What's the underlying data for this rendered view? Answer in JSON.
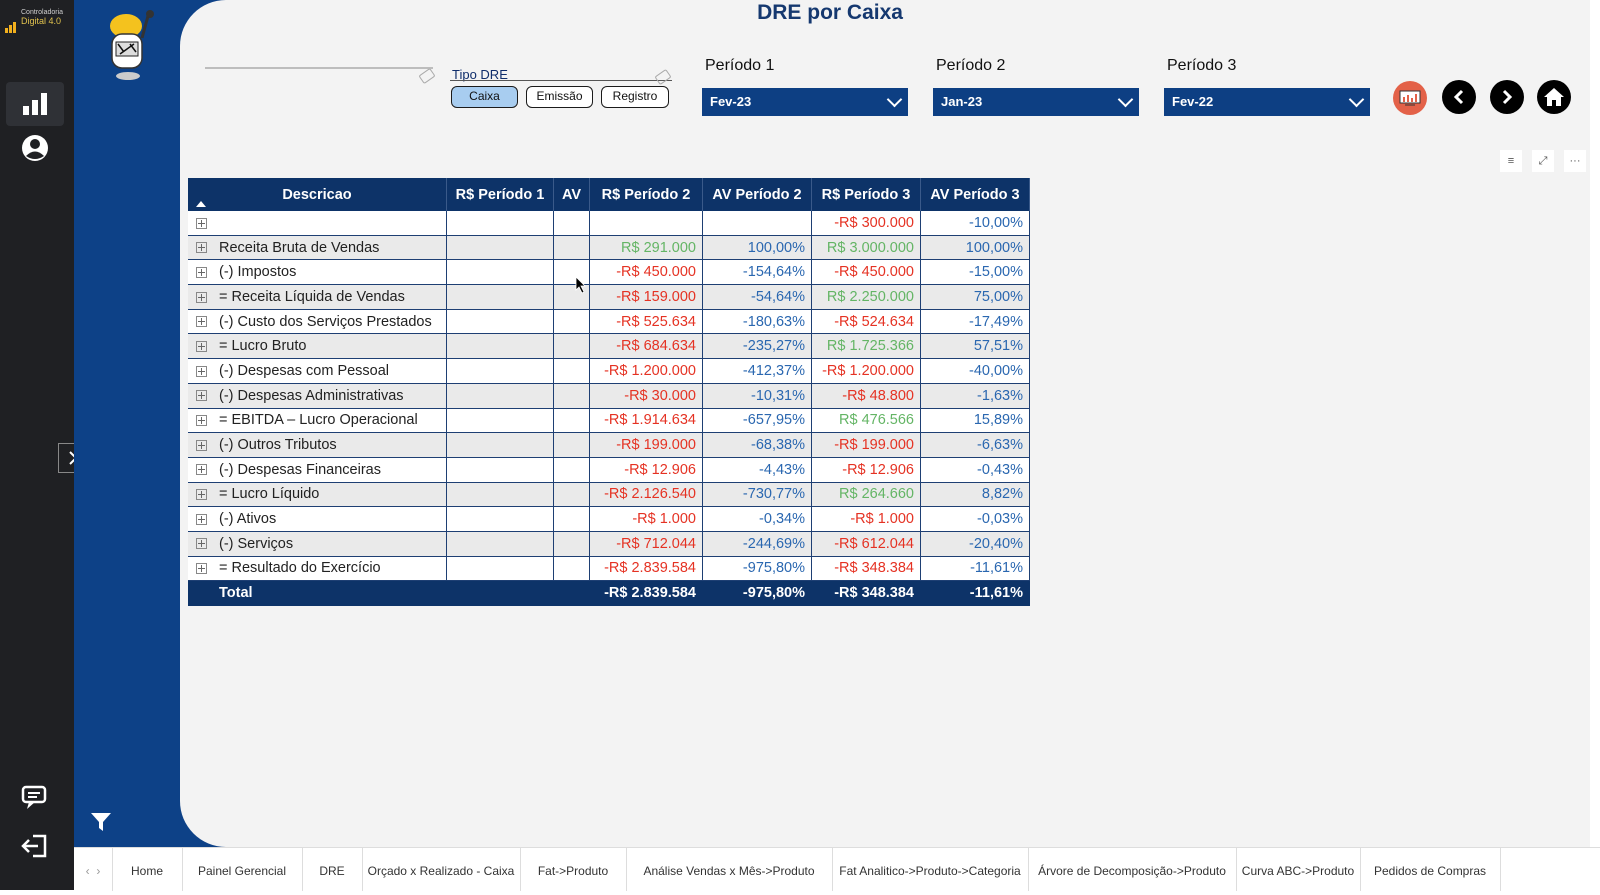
{
  "brand": {
    "line1": "Controladoria",
    "line2": "Digital 4.0"
  },
  "title": "DRE por Caixa",
  "tipo_dre": {
    "label": "Tipo DRE",
    "options": [
      "Caixa",
      "Emissão",
      "Registro"
    ],
    "selected": "Caixa"
  },
  "periods": [
    {
      "label": "Período 1",
      "value": "Fev-23"
    },
    {
      "label": "Período 2",
      "value": "Jan-23"
    },
    {
      "label": "Período 3",
      "value": "Fev-22"
    }
  ],
  "table": {
    "headers": [
      "Descricao",
      "R$ Período 1",
      "AV",
      "R$ Período 2",
      "AV Período 2",
      "R$ Período 3",
      "AV Período 3"
    ],
    "rows": [
      {
        "desc": "",
        "p1": "",
        "av": "",
        "p2": "",
        "av2": "",
        "p3": "-R$ 300.000",
        "av3": "-10,00%"
      },
      {
        "desc": "Receita Bruta de Vendas",
        "p1": "",
        "av": "",
        "p2": "R$ 291.000",
        "av2": "100,00%",
        "p3": "R$ 3.000.000",
        "av3": "100,00%"
      },
      {
        "desc": "(-) Impostos",
        "p1": "",
        "av": "",
        "p2": "-R$ 450.000",
        "av2": "-154,64%",
        "p3": "-R$ 450.000",
        "av3": "-15,00%"
      },
      {
        "desc": "= Receita Líquida de Vendas",
        "p1": "",
        "av": "",
        "p2": "-R$ 159.000",
        "av2": "-54,64%",
        "p3": "R$ 2.250.000",
        "av3": "75,00%"
      },
      {
        "desc": "(-) Custo dos Serviços Prestados",
        "p1": "",
        "av": "",
        "p2": "-R$ 525.634",
        "av2": "-180,63%",
        "p3": "-R$ 524.634",
        "av3": "-17,49%"
      },
      {
        "desc": "= Lucro Bruto",
        "p1": "",
        "av": "",
        "p2": "-R$ 684.634",
        "av2": "-235,27%",
        "p3": "R$ 1.725.366",
        "av3": "57,51%"
      },
      {
        "desc": "(-) Despesas com Pessoal",
        "p1": "",
        "av": "",
        "p2": "-R$ 1.200.000",
        "av2": "-412,37%",
        "p3": "-R$ 1.200.000",
        "av3": "-40,00%"
      },
      {
        "desc": "(-) Despesas Administrativas",
        "p1": "",
        "av": "",
        "p2": "-R$ 30.000",
        "av2": "-10,31%",
        "p3": "-R$ 48.800",
        "av3": "-1,63%"
      },
      {
        "desc": "= EBITDA – Lucro Operacional",
        "p1": "",
        "av": "",
        "p2": "-R$ 1.914.634",
        "av2": "-657,95%",
        "p3": "R$ 476.566",
        "av3": "15,89%"
      },
      {
        "desc": "(-) Outros Tributos",
        "p1": "",
        "av": "",
        "p2": "-R$ 199.000",
        "av2": "-68,38%",
        "p3": "-R$ 199.000",
        "av3": "-6,63%"
      },
      {
        "desc": "(-) Despesas Financeiras",
        "p1": "",
        "av": "",
        "p2": "-R$ 12.906",
        "av2": "-4,43%",
        "p3": "-R$ 12.906",
        "av3": "-0,43%"
      },
      {
        "desc": "= Lucro Líquido",
        "p1": "",
        "av": "",
        "p2": "-R$ 2.126.540",
        "av2": "-730,77%",
        "p3": "R$ 264.660",
        "av3": "8,82%"
      },
      {
        "desc": "(-) Ativos",
        "p1": "",
        "av": "",
        "p2": "-R$ 1.000",
        "av2": "-0,34%",
        "p3": "-R$ 1.000",
        "av3": "-0,03%"
      },
      {
        "desc": "(-) Serviços",
        "p1": "",
        "av": "",
        "p2": "-R$ 712.044",
        "av2": "-244,69%",
        "p3": "-R$ 612.044",
        "av3": "-20,40%"
      },
      {
        "desc": "= Resultado do Exercício",
        "p1": "",
        "av": "",
        "p2": "-R$ 2.839.584",
        "av2": "-975,80%",
        "p3": "-R$ 348.384",
        "av3": "-11,61%"
      }
    ],
    "total": {
      "desc": "Total",
      "p1": "",
      "av": "",
      "p2": "-R$ 2.839.584",
      "av2": "-975,80%",
      "p3": "-R$ 348.384",
      "av3": "-11,61%"
    }
  },
  "tabs": [
    "Home",
    "Painel Gerencial",
    "DRE",
    "Orçado x Realizado - Caixa",
    "Fat->Produto",
    "Análise Vendas x Mês->Produto",
    "Fat Analitico->Produto->Categoria",
    "Árvore de Decomposição->Produto",
    "Curva ABC->Produto",
    "Pedidos de Compras"
  ],
  "colors": {
    "navy": "#0d4187",
    "header": "#0d3368",
    "negative": "#e53223",
    "positive": "#64b565",
    "percent": "#2a67b0"
  }
}
